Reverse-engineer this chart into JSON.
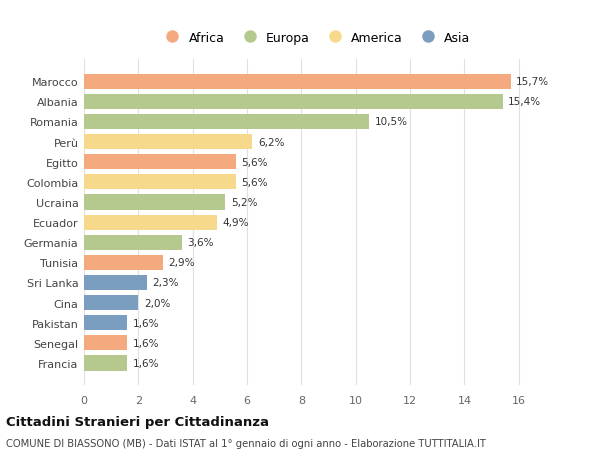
{
  "countries": [
    "Marocco",
    "Albania",
    "Romania",
    "Perù",
    "Egitto",
    "Colombia",
    "Ucraina",
    "Ecuador",
    "Germania",
    "Tunisia",
    "Sri Lanka",
    "Cina",
    "Pakistan",
    "Senegal",
    "Francia"
  ],
  "values": [
    15.7,
    15.4,
    10.5,
    6.2,
    5.6,
    5.6,
    5.2,
    4.9,
    3.6,
    2.9,
    2.3,
    2.0,
    1.6,
    1.6,
    1.6
  ],
  "labels": [
    "15,7%",
    "15,4%",
    "10,5%",
    "6,2%",
    "5,6%",
    "5,6%",
    "5,2%",
    "4,9%",
    "3,6%",
    "2,9%",
    "2,3%",
    "2,0%",
    "1,6%",
    "1,6%",
    "1,6%"
  ],
  "continents": [
    "Africa",
    "Europa",
    "Europa",
    "America",
    "Africa",
    "America",
    "Europa",
    "America",
    "Europa",
    "Africa",
    "Asia",
    "Asia",
    "Asia",
    "Africa",
    "Europa"
  ],
  "colors": {
    "Africa": "#F5A97F",
    "Europa": "#B5C98E",
    "America": "#F7D98B",
    "Asia": "#7B9DC0"
  },
  "title": "Cittadini Stranieri per Cittadinanza",
  "subtitle": "COMUNE DI BIASSONO (MB) - Dati ISTAT al 1° gennaio di ogni anno - Elaborazione TUTTITALIA.IT",
  "xlim": [
    0,
    17
  ],
  "xticks": [
    0,
    2,
    4,
    6,
    8,
    10,
    12,
    14,
    16
  ],
  "bg_color": "#FFFFFF",
  "grid_color": "#E0E0E0"
}
